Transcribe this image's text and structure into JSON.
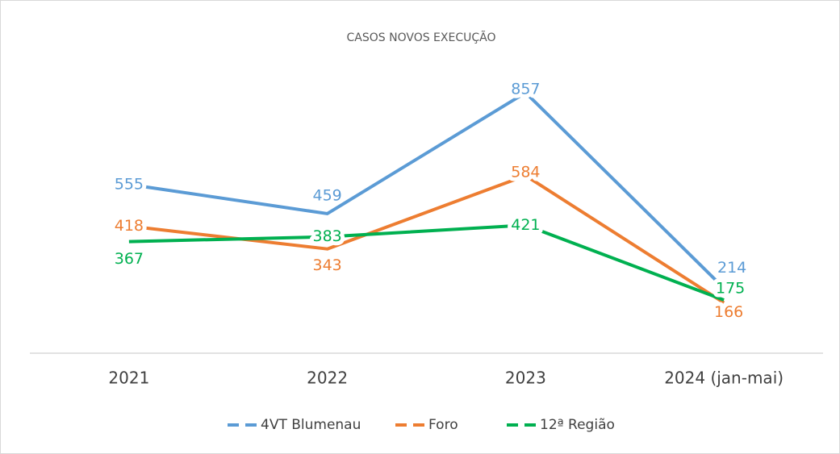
{
  "chart_data": {
    "type": "line",
    "title": "CASOS NOVOS EXECUÇÃO",
    "categories": [
      "2021",
      "2022",
      "2023",
      "2024 (jan-mai)"
    ],
    "series": [
      {
        "name": "4VT Blumenau",
        "color": "#5b9bd5",
        "values": [
          555,
          459,
          857,
          214
        ]
      },
      {
        "name": "Foro",
        "color": "#ed7d31",
        "values": [
          418,
          343,
          584,
          166
        ]
      },
      {
        "name": "12ª Região",
        "color": "#00b050",
        "values": [
          367,
          383,
          421,
          175
        ]
      }
    ],
    "ylim": [
      0,
      1000
    ],
    "legend": "bottom"
  }
}
